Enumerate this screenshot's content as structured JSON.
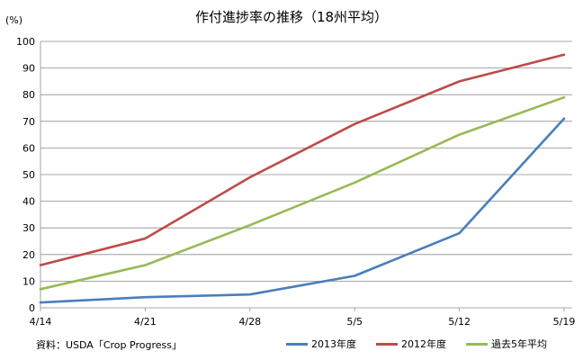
{
  "chart_data": {
    "type": "line",
    "title": "作付進捗率の推移（18州平均）",
    "ylabel": "(%)",
    "xlabel": "",
    "ylim": [
      0,
      100
    ],
    "yticks": [
      0,
      10,
      20,
      30,
      40,
      50,
      60,
      70,
      80,
      90,
      100
    ],
    "categories": [
      "4/14",
      "4/21",
      "4/28",
      "5/5",
      "5/12",
      "5/19"
    ],
    "grid": "horizontal",
    "legend_position": "bottom-right",
    "series": [
      {
        "name": "2013年度",
        "color": "#4a7ebb",
        "values": [
          2,
          4,
          5,
          12,
          28,
          71
        ]
      },
      {
        "name": "2012年度",
        "color": "#be4b48",
        "values": [
          16,
          26,
          49,
          69,
          85,
          95
        ]
      },
      {
        "name": "過去5年平均",
        "color": "#98b954",
        "values": [
          7,
          16,
          31,
          47,
          65,
          79
        ]
      }
    ],
    "source": "資料：USDA「Crop Progress」"
  }
}
